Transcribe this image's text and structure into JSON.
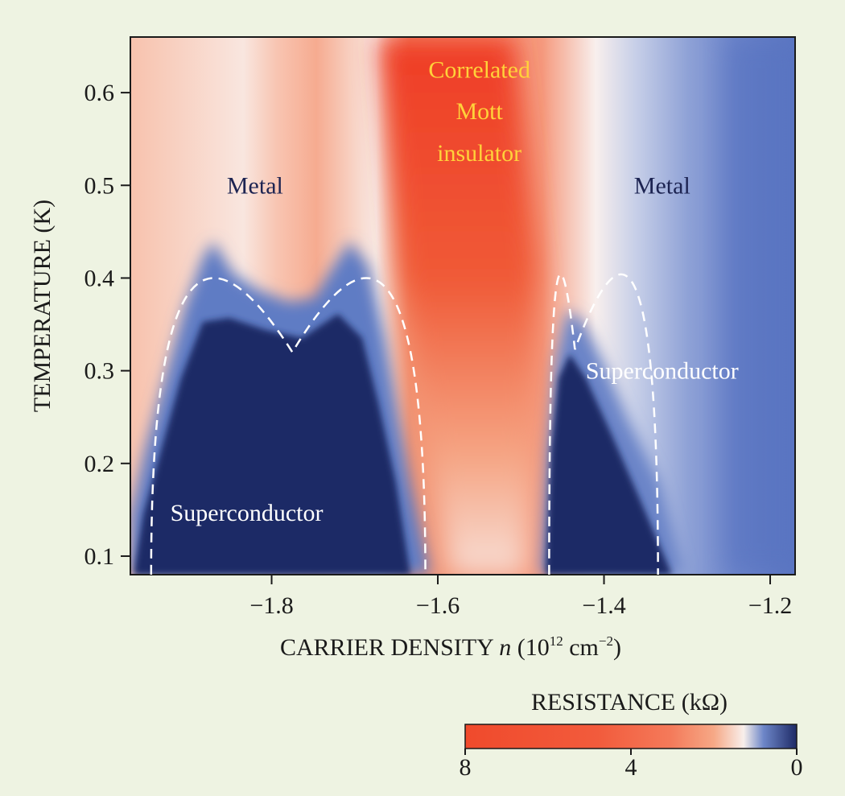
{
  "chart_data": {
    "type": "heatmap",
    "xlabel_main": "CARRIER DENSITY ",
    "xlabel_var": "n",
    "xlabel_unit_open": " (10",
    "xlabel_unit_exp": "12",
    "xlabel_unit_mid": " cm",
    "xlabel_unit_exp2": "−2",
    "xlabel_unit_close": ")",
    "ylabel": "TEMPERATURE (K)",
    "xlim": [
      -1.97,
      -1.17
    ],
    "ylim": [
      0.08,
      0.66
    ],
    "x_ticks": [
      -1.8,
      -1.6,
      -1.4,
      -1.2
    ],
    "x_tick_labels": [
      "−1.8",
      "−1.6",
      "−1.4",
      "−1.2"
    ],
    "y_ticks": [
      0.1,
      0.2,
      0.3,
      0.4,
      0.5,
      0.6
    ],
    "y_tick_labels": [
      "0.1",
      "0.2",
      "0.3",
      "0.4",
      "0.5",
      "0.6"
    ],
    "colorbar": {
      "title": "RESISTANCE (kΩ)",
      "range": [
        8,
        0
      ],
      "ticks": [
        8,
        4,
        0
      ],
      "tick_labels": [
        "8",
        "4",
        "0"
      ],
      "colors": [
        "#f04a2c",
        "#f47a5a",
        "#f7b08f",
        "#f8f3f1",
        "#5b76bf",
        "#1f2d6b"
      ]
    },
    "regions": [
      {
        "label": "Metal",
        "x": -1.82,
        "y": 0.5,
        "color": "#1d2452"
      },
      {
        "label": "Metal",
        "x": -1.33,
        "y": 0.5,
        "color": "#1d2452"
      },
      {
        "label": "Correlated",
        "x": -1.55,
        "y": 0.625,
        "color": "#ffd23a"
      },
      {
        "label": "Mott",
        "x": -1.55,
        "y": 0.58,
        "color": "#ffd23a"
      },
      {
        "label": "insulator",
        "x": -1.55,
        "y": 0.535,
        "color": "#ffd23a"
      },
      {
        "label": "Superconductor",
        "x": -1.83,
        "y": 0.147,
        "color": "#ffffff"
      },
      {
        "label": "Superconductor",
        "x": -1.33,
        "y": 0.3,
        "color": "#ffffff"
      }
    ],
    "dome_left": {
      "x_start": -1.945,
      "x_peak": -1.775,
      "x_end": -1.615,
      "t_peak": 0.32,
      "t_base": 0.08
    },
    "dome_right": {
      "x_start": -1.466,
      "x_peak": -1.435,
      "x_end": -1.335,
      "t_peak": 0.323,
      "t_base": 0.08
    }
  }
}
